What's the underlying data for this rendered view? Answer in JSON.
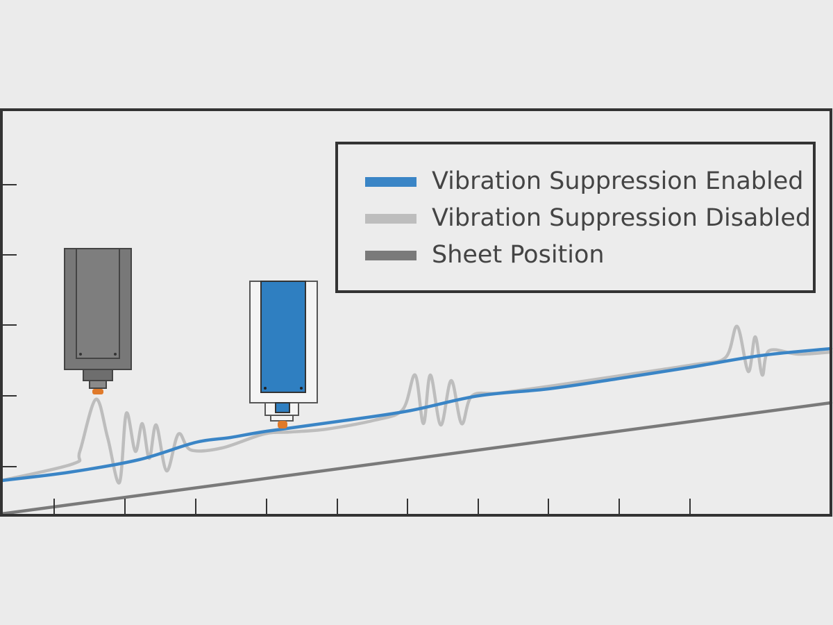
{
  "chart_data": {
    "type": "line",
    "legend": "upper right",
    "xlim": [
      0,
      1195
    ],
    "ylim": [
      0,
      584
    ],
    "xticks": [
      76,
      178,
      280,
      382,
      484,
      585,
      687,
      788,
      890,
      992
    ],
    "yticks": [
      70,
      172,
      274,
      375,
      476
    ],
    "series": [
      {
        "name": "Vibration Suppression Enabled",
        "color": "#3a85c6",
        "x": [
          0,
          98,
          198,
          280,
          330,
          382,
          484,
          585,
          687,
          788,
          890,
          992,
          1094,
          1195
        ],
        "values": [
          50,
          62,
          80,
          105,
          112,
          121,
          135,
          150,
          172,
          182,
          197,
          213,
          230,
          240
        ]
      },
      {
        "name": "Vibration Suppression Disabled",
        "color": "#bdbdbd",
        "x": [
          0,
          103,
          113,
          136,
          153,
          170,
          180,
          193,
          203,
          213,
          223,
          238,
          255,
          273,
          318,
          378,
          418,
          468,
          538,
          578,
          596,
          608,
          618,
          633,
          648,
          663,
          678,
          718,
          798,
          898,
          998,
          1043,
          1060,
          1076,
          1086,
          1096,
          1106,
          1148,
          1195
        ],
        "values": [
          50,
          74,
          92,
          167,
          112,
          47,
          147,
          92,
          132,
          82,
          130,
          64,
          117,
          94,
          97,
          117,
          120,
          124,
          137,
          152,
          202,
          132,
          202,
          130,
          194,
          132,
          172,
          176,
          187,
          202,
          217,
          227,
          272,
          207,
          257,
          202,
          237,
          232,
          235
        ]
      },
      {
        "name": "Sheet Position",
        "color": "#7a7a7a",
        "x": [
          0,
          1195
        ],
        "values": [
          2,
          162
        ]
      }
    ]
  }
}
